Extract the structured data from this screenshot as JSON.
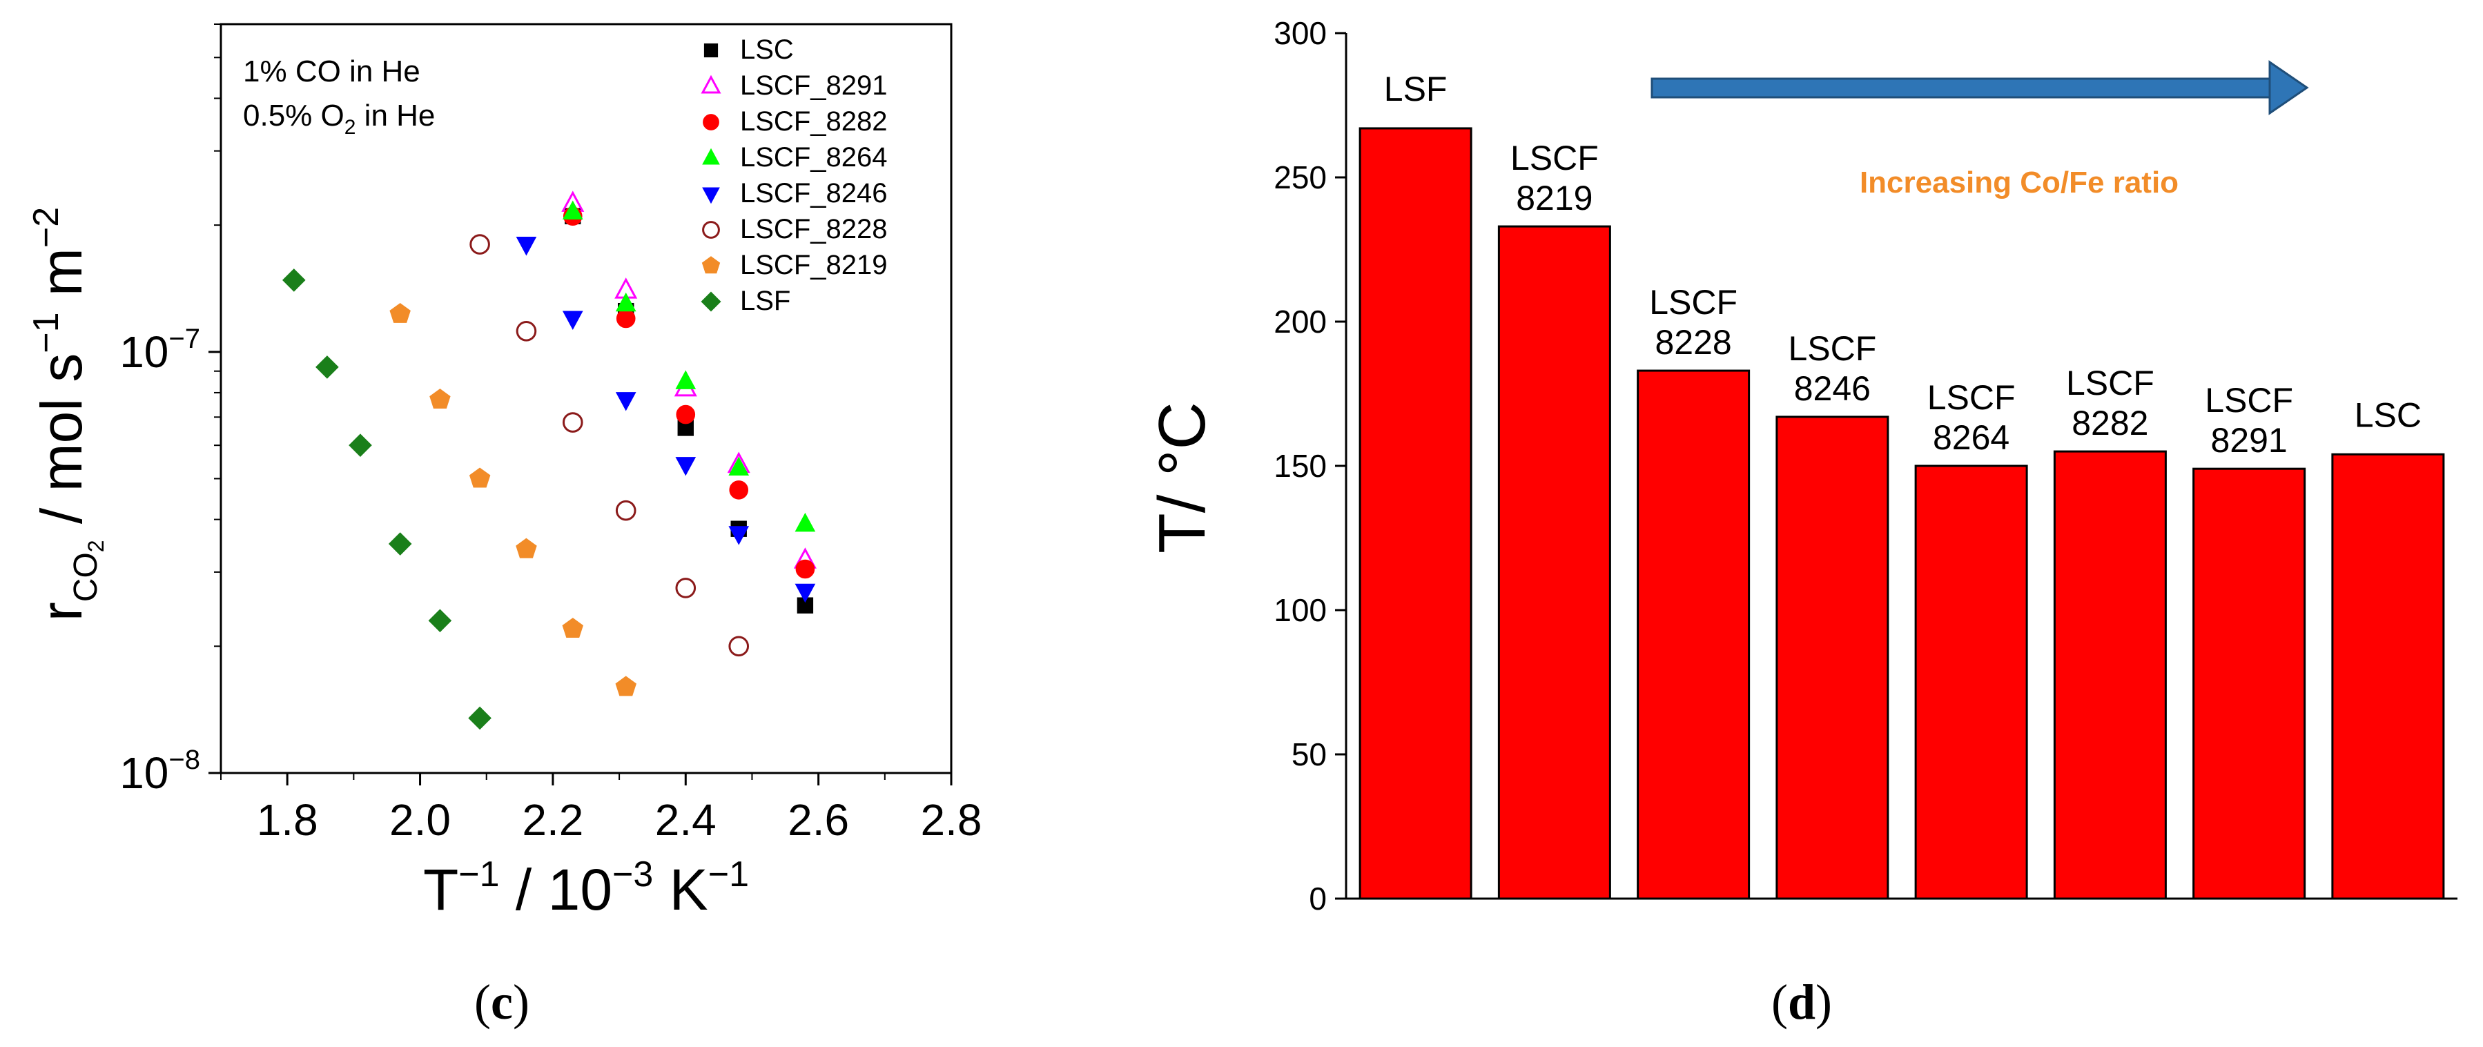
{
  "panels": {
    "c": "(c)",
    "c_letter": "c",
    "d": "(d)",
    "d_letter": "d"
  },
  "colors": {
    "bar": "#ff0000",
    "arrow": "#2e75b6",
    "annotation": "#f28c28"
  },
  "chart_data": [
    {
      "type": "scatter",
      "panel": "c",
      "xlabel": "T-1 / 10-3 K-1",
      "xlabel_parts": {
        "T": "T",
        "exp1": "−1",
        "mid": " / 10",
        "exp2": "−3",
        "K": " K",
        "exp3": "−1"
      },
      "ylabel": "rCO2 / mol s-1 m-2",
      "ylabel_parts": {
        "r": "r",
        "sub": "CO",
        "sub2": "2",
        "unit": " / mol s",
        "exp1": "−1",
        "m": " m",
        "exp2": "−2"
      },
      "yscale": "log",
      "xlim": [
        1.7,
        2.8
      ],
      "ylim": [
        1e-08,
        6e-07
      ],
      "xticks": [
        "1.8",
        "2.0",
        "2.2",
        "2.4",
        "2.6",
        "2.8"
      ],
      "yticks": [
        {
          "value": 1e-07,
          "base": "10",
          "exp": "−7"
        },
        {
          "value": 1e-08,
          "base": "10",
          "exp": "−8"
        }
      ],
      "conditions": [
        {
          "text": "1% CO in He"
        },
        {
          "pre": "0.5% O",
          "sub": "2",
          "post": " in He"
        }
      ],
      "series": [
        {
          "name": "LSC",
          "marker": "square",
          "color": "#000000",
          "filled": true,
          "x": [
            2.23,
            2.31,
            2.4,
            2.48,
            2.58
          ],
          "y": [
            2.1e-07,
            1.25e-07,
            6.6e-08,
            3.8e-08,
            2.5e-08
          ]
        },
        {
          "name": "LSCF_8291",
          "marker": "triangle-up",
          "color": "#ff00ff",
          "filled": false,
          "x": [
            2.23,
            2.31,
            2.4,
            2.48,
            2.58
          ],
          "y": [
            2.25e-07,
            1.4e-07,
            8.2e-08,
            5.4e-08,
            3.2e-08
          ]
        },
        {
          "name": "LSCF_8282",
          "marker": "circle",
          "color": "#ff0000",
          "filled": true,
          "x": [
            2.23,
            2.31,
            2.4,
            2.48,
            2.58
          ],
          "y": [
            2.1e-07,
            1.2e-07,
            7.1e-08,
            4.7e-08,
            3.05e-08
          ]
        },
        {
          "name": "LSCF_8264",
          "marker": "triangle-up",
          "color": "#00ff00",
          "filled": true,
          "x": [
            2.23,
            2.31,
            2.4,
            2.48,
            2.58
          ],
          "y": [
            2.15e-07,
            1.3e-07,
            8.5e-08,
            5.3e-08,
            3.9e-08
          ]
        },
        {
          "name": "LSCF_8246",
          "marker": "triangle-down",
          "color": "#0000ff",
          "filled": true,
          "x": [
            2.16,
            2.23,
            2.31,
            2.4,
            2.48,
            2.58
          ],
          "y": [
            1.8e-07,
            1.2e-07,
            7.7e-08,
            5.4e-08,
            3.7e-08,
            2.7e-08
          ]
        },
        {
          "name": "LSCF_8228",
          "marker": "circle",
          "color": "#8b1a1a",
          "filled": false,
          "x": [
            2.09,
            2.16,
            2.23,
            2.31,
            2.4,
            2.48
          ],
          "y": [
            1.8e-07,
            1.12e-07,
            6.8e-08,
            4.2e-08,
            2.75e-08,
            2e-08
          ]
        },
        {
          "name": "LSCF_8219",
          "marker": "pentagon",
          "color": "#f28c28",
          "filled": true,
          "x": [
            1.97,
            2.03,
            2.09,
            2.16,
            2.23,
            2.31
          ],
          "y": [
            1.23e-07,
            7.7e-08,
            5e-08,
            3.4e-08,
            2.2e-08,
            1.6e-08
          ]
        },
        {
          "name": "LSF",
          "marker": "diamond",
          "color": "#1a7f1a",
          "filled": true,
          "x": [
            1.81,
            1.86,
            1.91,
            1.97,
            2.03,
            2.09
          ],
          "y": [
            1.48e-07,
            9.2e-08,
            6e-08,
            3.5e-08,
            2.3e-08,
            1.35e-08
          ]
        }
      ]
    },
    {
      "type": "bar",
      "panel": "d",
      "ylabel": "T/ °C",
      "ylim": [
        0,
        300
      ],
      "yticks": [
        0,
        50,
        100,
        150,
        200,
        250,
        300
      ],
      "categories": [
        {
          "line1": "LSF",
          "line2": ""
        },
        {
          "line1": "LSCF",
          "line2": "8219"
        },
        {
          "line1": "LSCF",
          "line2": "8228"
        },
        {
          "line1": "LSCF",
          "line2": "8246"
        },
        {
          "line1": "LSCF",
          "line2": "8264"
        },
        {
          "line1": "LSCF",
          "line2": "8282"
        },
        {
          "line1": "LSCF",
          "line2": "8291"
        },
        {
          "line1": "LSC",
          "line2": ""
        }
      ],
      "values": [
        267,
        233,
        183,
        167,
        150,
        155,
        149,
        154
      ],
      "annotation": "Increasing Co/Fe ratio"
    }
  ]
}
